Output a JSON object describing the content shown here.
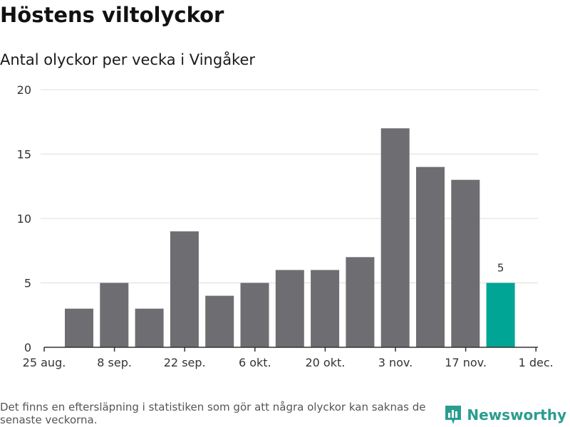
{
  "header": {
    "title": "Höstens viltolyckor",
    "subtitle": "Antal olyckor per vecka i Vingåker"
  },
  "footer": {
    "note": "Det finns en eftersläpning i statistiken som gör att några olyckor kan saknas de senaste veckorna.",
    "brand": "Newsworthy",
    "brand_icon": "newsworthy-logo-icon"
  },
  "colors": {
    "bar": "#6e6d72",
    "highlight": "#00a596",
    "grid": "#dddddd",
    "axis": "#333333",
    "brand": "#2a9d8f"
  },
  "chart_data": {
    "type": "bar",
    "title": "Höstens viltolyckor",
    "subtitle": "Antal olyckor per vecka i Vingåker",
    "xlabel": "",
    "ylabel": "",
    "ylim": [
      0,
      20
    ],
    "yticks": [
      0,
      5,
      10,
      15,
      20
    ],
    "x_tick_labels": [
      "25 aug.",
      "8 sep.",
      "22 sep.",
      "6 okt.",
      "20 okt.",
      "3 nov.",
      "17 nov.",
      "1 dec."
    ],
    "values": [
      3,
      5,
      3,
      9,
      4,
      5,
      6,
      6,
      7,
      17,
      14,
      13,
      5
    ],
    "highlight_index": 12,
    "highlight_label": "5",
    "grid": true,
    "legend": "none"
  }
}
